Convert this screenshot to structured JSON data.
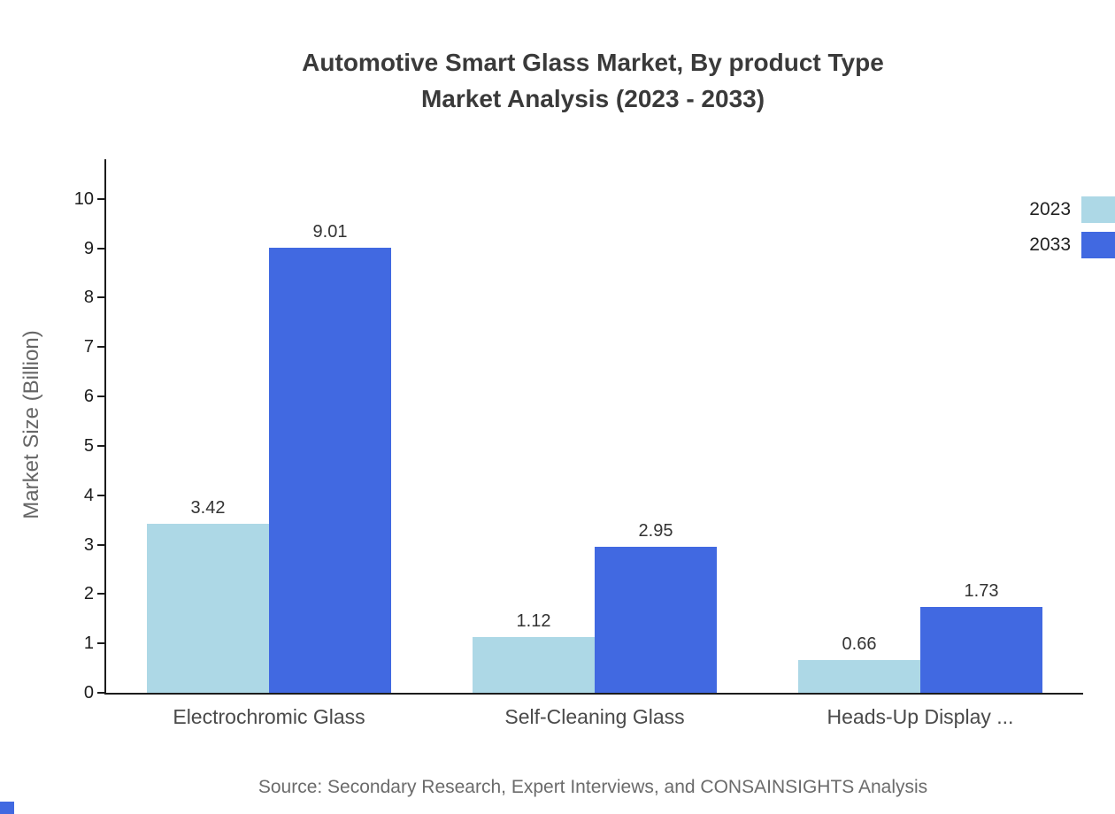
{
  "title": {
    "line1": "Automotive Smart Glass Market, By product Type",
    "line2": "Market Analysis (2023 - 2033)"
  },
  "source": "Source: Secondary Research, Expert Interviews, and CONSAINSIGHTS Analysis",
  "colors": {
    "accent": "#4169e1",
    "series_2023": "#add8e6",
    "series_2033": "#4169e1"
  },
  "chart_data": {
    "type": "bar",
    "title": "Automotive Smart Glass Market, By product Type Market Analysis (2023 - 2033)",
    "categories": [
      "Electrochromic Glass",
      "Self-Cleaning Glass",
      "Heads-Up Display ..."
    ],
    "series": [
      {
        "name": "2023",
        "color": "#add8e6",
        "values": [
          3.42,
          1.12,
          0.66
        ]
      },
      {
        "name": "2033",
        "color": "#4169e1",
        "values": [
          9.01,
          2.95,
          1.73
        ]
      }
    ],
    "xlabel": "",
    "ylabel": "Market Size (Billion)",
    "ylim": [
      0,
      10.8
    ],
    "yticks": [
      0,
      1,
      2,
      3,
      4,
      5,
      6,
      7,
      8,
      9,
      10
    ],
    "grid": false,
    "legend_position": "top-right",
    "value_labels": true
  }
}
